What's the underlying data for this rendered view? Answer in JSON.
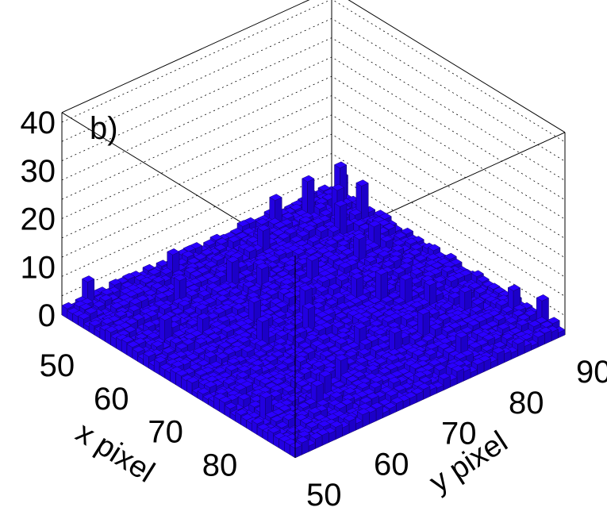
{
  "chart_data": {
    "type": "lego3d",
    "panel_label": "b)",
    "x_axis_label": "x pixel",
    "y_axis_label": "y pixel",
    "z_axis_label": "",
    "x_range": [
      45,
      88
    ],
    "y_range": [
      50,
      90
    ],
    "z_range": [
      0,
      42
    ],
    "x_ticks": [
      50,
      60,
      70,
      80
    ],
    "y_ticks": [
      50,
      60,
      70,
      80,
      90
    ],
    "z_ticks": [
      0,
      10,
      20,
      30,
      40
    ],
    "bin_width": 1,
    "typical_height": 2,
    "bar_color": "#2a00ff",
    "grid": "dotted",
    "notable_bins": [
      {
        "x": 48,
        "y": 88,
        "z": 9
      },
      {
        "x": 47,
        "y": 84,
        "z": 8
      },
      {
        "x": 50,
        "y": 86,
        "z": 7
      },
      {
        "x": 52,
        "y": 88,
        "z": 8
      },
      {
        "x": 53,
        "y": 84,
        "z": 7
      },
      {
        "x": 46,
        "y": 80,
        "z": 6
      },
      {
        "x": 66,
        "y": 76,
        "z": 6
      },
      {
        "x": 68,
        "y": 78,
        "z": 7
      },
      {
        "x": 64,
        "y": 70,
        "z": 6
      },
      {
        "x": 70,
        "y": 80,
        "z": 6
      },
      {
        "x": 62,
        "y": 64,
        "z": 6
      },
      {
        "x": 66,
        "y": 62,
        "z": 6
      },
      {
        "x": 72,
        "y": 82,
        "z": 5
      },
      {
        "x": 60,
        "y": 58,
        "z": 5
      },
      {
        "x": 58,
        "y": 54,
        "z": 6
      },
      {
        "x": 74,
        "y": 70,
        "z": 5
      },
      {
        "x": 78,
        "y": 64,
        "z": 5
      },
      {
        "x": 76,
        "y": 84,
        "z": 5
      },
      {
        "x": 56,
        "y": 70,
        "z": 5
      }
    ]
  }
}
